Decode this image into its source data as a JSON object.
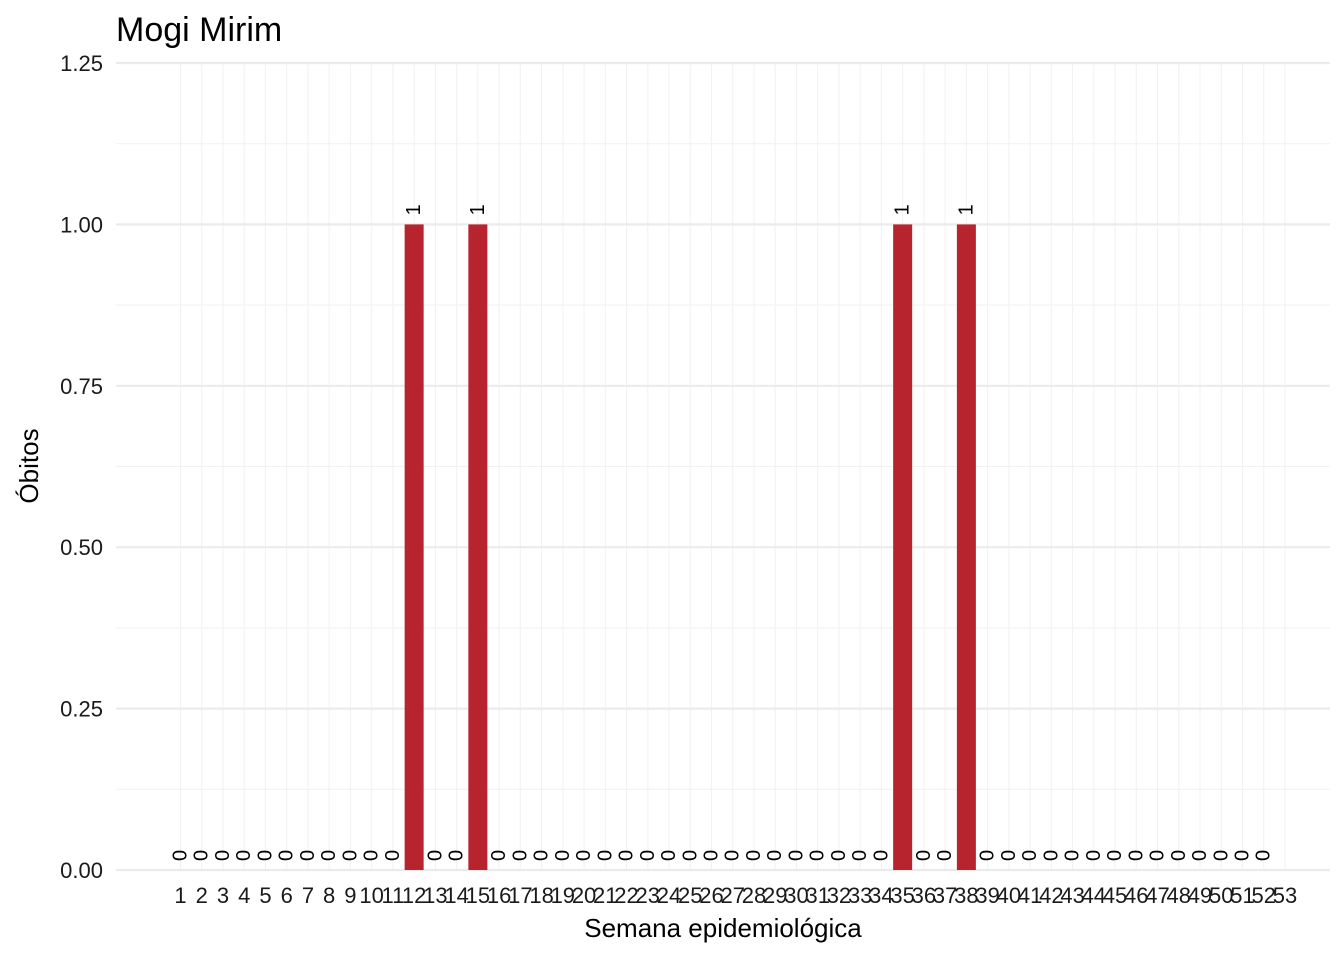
{
  "chart_data": {
    "type": "bar",
    "title": "Mogi Mirim",
    "xlabel": "Semana epidemiológica",
    "ylabel": "Óbitos",
    "categories": [
      "1",
      "2",
      "3",
      "4",
      "5",
      "6",
      "7",
      "8",
      "9",
      "10",
      "11",
      "12",
      "13",
      "14",
      "15",
      "16",
      "17",
      "18",
      "19",
      "20",
      "21",
      "22",
      "23",
      "24",
      "25",
      "26",
      "27",
      "28",
      "29",
      "30",
      "31",
      "32",
      "33",
      "34",
      "35",
      "36",
      "37",
      "38",
      "39",
      "40",
      "41",
      "42",
      "43",
      "44",
      "45",
      "46",
      "47",
      "48",
      "49",
      "50",
      "51",
      "52",
      "53"
    ],
    "values": [
      0,
      0,
      0,
      0,
      0,
      0,
      0,
      0,
      0,
      0,
      0,
      1,
      0,
      0,
      1,
      0,
      0,
      0,
      0,
      0,
      0,
      0,
      0,
      0,
      0,
      0,
      0,
      0,
      0,
      0,
      0,
      0,
      0,
      0,
      1,
      0,
      0,
      1,
      0,
      0,
      0,
      0,
      0,
      0,
      0,
      0,
      0,
      0,
      0,
      0,
      0,
      0,
      null
    ],
    "data_labels": [
      "0",
      "0",
      "0",
      "0",
      "0",
      "0",
      "0",
      "0",
      "0",
      "0",
      "0",
      "1",
      "0",
      "0",
      "1",
      "0",
      "0",
      "0",
      "0",
      "0",
      "0",
      "0",
      "0",
      "0",
      "0",
      "0",
      "0",
      "0",
      "0",
      "0",
      "0",
      "0",
      "0",
      "0",
      "1",
      "0",
      "0",
      "1",
      "0",
      "0",
      "0",
      "0",
      "0",
      "0",
      "0",
      "0",
      "0",
      "0",
      "0",
      "0",
      "0",
      "0",
      ""
    ],
    "y_ticks": [
      "0.00",
      "0.25",
      "0.50",
      "0.75",
      "1.00",
      "1.25"
    ],
    "ylim": [
      0,
      1.25
    ],
    "grid": true,
    "legend": "none",
    "bar_color": "#B8242D"
  }
}
